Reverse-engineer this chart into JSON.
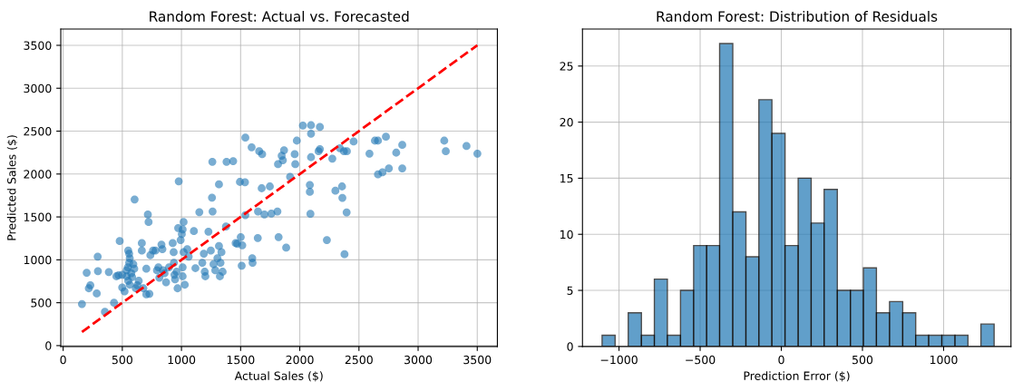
{
  "chart_data": [
    {
      "type": "scatter",
      "title": "Random Forest: Actual vs. Forecasted",
      "xlabel": "Actual Sales ($)",
      "ylabel": "Predicted Sales ($)",
      "xlim": [
        -20,
        3670
      ],
      "ylim": [
        -10,
        3690
      ],
      "xticks": [
        0,
        500,
        1000,
        1500,
        2000,
        2500,
        3000,
        3500
      ],
      "yticks": [
        0,
        500,
        1000,
        1500,
        2000,
        2500,
        3000,
        3500
      ],
      "grid": true,
      "marker": "circle",
      "series": [
        {
          "type": "scatter",
          "color": "#1f77b4",
          "x": [
            159,
            199,
            217,
            230,
            284,
            294,
            292,
            386,
            353,
            430,
            450,
            478,
            468,
            499,
            499,
            519,
            537,
            550,
            558,
            563,
            558,
            547,
            537,
            550,
            563,
            576,
            583,
            593,
            601,
            604,
            614,
            627,
            639,
            665,
            665,
            678,
            703,
            703,
            716,
            722,
            729,
            737,
            760,
            780,
            793,
            805,
            813,
            831,
            839,
            844,
            857,
            870,
            895,
            926,
            934,
            936,
            941,
            946,
            959,
            967,
            972,
            977,
            993,
            1003,
            1010,
            1018,
            1018,
            1010,
            1010,
            1028,
            1049,
            1061,
            1105,
            1118,
            1151,
            1176,
            1189,
            1197,
            1202,
            1228,
            1248,
            1258,
            1263,
            1261,
            1271,
            1286,
            1304,
            1317,
            1317,
            1330,
            1338,
            1348,
            1325,
            1376,
            1381,
            1437,
            1458,
            1471,
            1494,
            1501,
            1509,
            1514,
            1540,
            1537,
            1540,
            1593,
            1598,
            1601,
            1645,
            1647,
            1657,
            1682,
            1678,
            1701,
            1747,
            1760,
            1811,
            1821,
            1816,
            1847,
            1857,
            1867,
            1885,
            1918,
            1957,
            1962,
            1975,
            2026,
            2095,
            2095,
            2170,
            2095,
            2159,
            2170,
            2085,
            2085,
            2090,
            2275,
            2301,
            2357,
            2360,
            2396,
            2339,
            2373,
            2398,
            2455,
            2229,
            2378,
            2589,
            2635,
            2661,
            2728,
            2815,
            2866,
            2661,
            2699,
            2753,
            2866,
            3221,
            3234,
            3409,
            3501
          ],
          "values": [
            485,
            850,
            668,
            703,
            608,
            868,
            1037,
            857,
            394,
            499,
            808,
            1219,
            819,
            678,
            826,
            632,
            878,
            1107,
            1072,
            1019,
            966,
            913,
            808,
            755,
            710,
            843,
            798,
            949,
            896,
            1704,
            668,
            703,
            755,
            1195,
            1107,
            668,
            896,
            597,
            1528,
            1441,
            604,
            1054,
            1107,
            1107,
            878,
            913,
            791,
            1177,
            1124,
            878,
            843,
            738,
            913,
            1195,
            1089,
            966,
            826,
            773,
            861,
            668,
            1370,
            1915,
            1230,
            1300,
            1353,
            1441,
            1089,
            913,
            808,
            710,
            1124,
            1037,
            1335,
            903,
            1556,
            966,
            1072,
            861,
            808,
            1328,
            1107,
            1725,
            1563,
            2143,
            949,
            878,
            1019,
            1880,
            1160,
            966,
            1089,
            861,
            808,
            1388,
            2143,
            2150,
            1195,
            1188,
            1908,
            1265,
            931,
            1170,
            2424,
            1904,
            1521,
            2312,
            1019,
            966,
            1254,
            1563,
            2266,
            2231,
            1834,
            1528,
            1855,
            1539,
            1563,
            1265,
            2115,
            2213,
            2161,
            2277,
            1142,
            1968,
            2231,
            2115,
            2389,
            2565,
            2569,
            2470,
            2548,
            2196,
            2266,
            2291,
            1873,
            1792,
            1536,
            2179,
            1806,
            1855,
            1722,
            1553,
            2301,
            2266,
            2266,
            2379,
            1230,
            1065,
            2238,
            2389,
            2389,
            2435,
            2249,
            2340,
            1996,
            2020,
            2066,
            2066,
            2389,
            2266,
            2326,
            2238
          ]
        },
        {
          "type": "line",
          "color": "#ff0000",
          "line_style": "dashed",
          "marker": "none",
          "x": [
            159,
            3501
          ],
          "values": [
            159,
            3501
          ]
        }
      ]
    },
    {
      "type": "histogram",
      "title": "Random Forest: Distribution of Residuals",
      "xlabel": "Prediction Error ($)",
      "xlim": [
        -1225,
        1415
      ],
      "ylim": [
        0,
        28.3
      ],
      "xticks": [
        {
          "value": -1000,
          "label": "−1000"
        },
        {
          "value": -500,
          "label": "−500"
        },
        0,
        500,
        1000
      ],
      "yticks": [
        0,
        5,
        10,
        15,
        20,
        25
      ],
      "grid": true,
      "color": "#1f77b4",
      "bins": [
        -1104,
        -1024,
        -943,
        -862,
        -782,
        -702,
        -621,
        -540,
        -460,
        -380,
        -299,
        -218,
        -138,
        -58,
        23,
        104,
        184,
        264,
        345,
        426,
        506,
        586,
        667,
        748,
        828,
        908,
        989,
        1070,
        1150,
        1230,
        1311
      ],
      "values": [
        1,
        0,
        3,
        1,
        6,
        1,
        5,
        9,
        9,
        27,
        12,
        8,
        22,
        19,
        9,
        15,
        11,
        14,
        5,
        5,
        7,
        3,
        4,
        3,
        1,
        1,
        1,
        1,
        0,
        2
      ]
    }
  ]
}
